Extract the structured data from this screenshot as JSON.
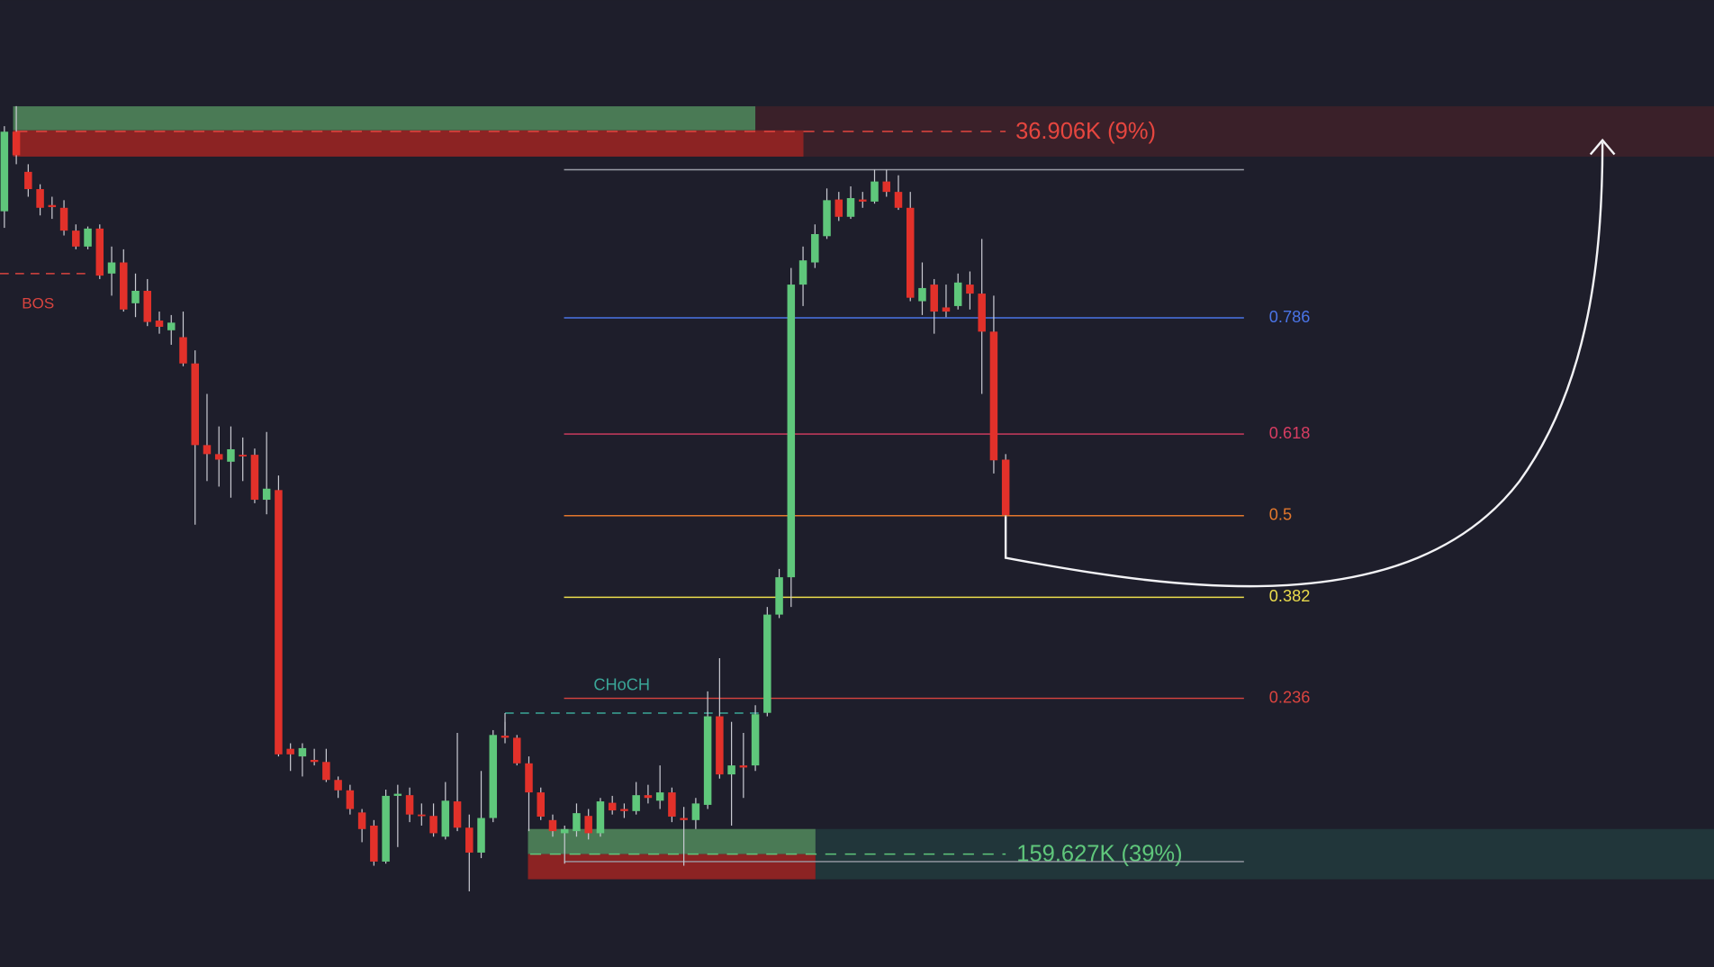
{
  "chart_data": {
    "type": "candlestick",
    "ylim": [
      -0.152,
      1.245
    ],
    "up_color": "#5fc77b",
    "down_color": "#e2312a",
    "wick_color": "#c9cad2",
    "open": [
      0.94,
      1.055,
      0.997,
      0.972,
      0.949,
      0.945,
      0.912,
      0.889,
      0.915,
      0.85,
      0.866,
      0.807,
      0.825,
      0.782,
      0.768,
      0.758,
      0.72,
      0.602,
      0.589,
      0.578,
      0.588,
      0.588,
      0.523,
      0.537,
      0.163,
      0.152,
      0.147,
      0.144,
      0.118,
      0.103,
      0.071,
      0.052,
      0,
      0.095,
      0.096,
      0.068,
      0.066,
      0.036,
      0.087,
      0.049,
      0.013,
      0.063,
      0.182,
      0.179,
      0.142,
      0.1,
      0.06,
      0.041,
      0.044,
      0.066,
      0.041,
      0.085,
      0.076,
      0.073,
      0.096,
      0.088,
      0.1,
      0.063,
      0.06,
      0.082,
      0.21,
      0.126,
      0.139,
      0.139,
      0.215,
      0.357,
      0.411,
      0.834,
      0.866,
      0.904,
      0.957,
      0.932,
      0.957,
      0.954,
      0.983,
      0.968,
      0.945,
      0.81,
      0.834,
      0.801,
      0.803,
      0.834,
      0.821,
      0.766,
      0.581
    ],
    "high": [
      1.063,
      1.092,
      1.008,
      0.979,
      0.961,
      0.956,
      0.921,
      0.918,
      0.921,
      0.889,
      0.885,
      0.85,
      0.842,
      0.795,
      0.79,
      0.795,
      0.739,
      0.676,
      0.629,
      0.629,
      0.613,
      0.597,
      0.621,
      0.558,
      0.171,
      0.171,
      0.163,
      0.163,
      0.123,
      0.111,
      0.076,
      0.06,
      0.104,
      0.111,
      0.107,
      0.084,
      0.084,
      0.115,
      0.186,
      0.068,
      0.131,
      0.19,
      0.202,
      0.183,
      0.152,
      0.107,
      0.068,
      0.052,
      0.084,
      0.076,
      0.092,
      0.095,
      0.084,
      0.115,
      0.111,
      0.139,
      0.107,
      0.079,
      0.092,
      0.246,
      0.294,
      0.202,
      0.186,
      0.226,
      0.368,
      0.423,
      0.858,
      0.889,
      0.921,
      0.973,
      0.968,
      0.976,
      0.968,
      1.0,
      1.0,
      0.992,
      0.968,
      0.866,
      0.842,
      0.834,
      0.85,
      0.853,
      0.9,
      0.818,
      0.589
    ],
    "low": [
      0.916,
      1.008,
      0.961,
      0.934,
      0.929,
      0.905,
      0.885,
      0.885,
      0.842,
      0.818,
      0.795,
      0.787,
      0.774,
      0.763,
      0.747,
      0.716,
      0.487,
      0.55,
      0.542,
      0.526,
      0.55,
      0.518,
      0.502,
      0.152,
      0.131,
      0.123,
      0.139,
      0.115,
      0.092,
      0.068,
      0.028,
      -0.006,
      -0.003,
      0.021,
      0.057,
      0.052,
      0.036,
      0.032,
      0.044,
      -0.043,
      0.005,
      0.057,
      0.171,
      0.139,
      0.044,
      0.06,
      0.036,
      -0.003,
      0.036,
      0.032,
      0.036,
      0.068,
      0.063,
      0.068,
      0.084,
      0.076,
      0.057,
      -0.006,
      0.047,
      0.076,
      0.12,
      0.052,
      0.092,
      0.131,
      0.21,
      0.352,
      0.368,
      0.803,
      0.858,
      0.9,
      0.926,
      0.929,
      0.945,
      0.951,
      0.961,
      0.942,
      0.81,
      0.79,
      0.763,
      0.787,
      0.798,
      0.798,
      0.676,
      0.561,
      0.499
    ],
    "close": [
      1.055,
      1.021,
      0.972,
      0.945,
      0.946,
      0.912,
      0.889,
      0.915,
      0.847,
      0.866,
      0.798,
      0.825,
      0.78,
      0.773,
      0.779,
      0.72,
      0.602,
      0.589,
      0.581,
      0.596,
      0.586,
      0.523,
      0.539,
      0.155,
      0.155,
      0.164,
      0.144,
      0.118,
      0.103,
      0.076,
      0.047,
      0,
      0.095,
      0.098,
      0.068,
      0.066,
      0.041,
      0.088,
      0.049,
      0.013,
      0.063,
      0.183,
      0.179,
      0.142,
      0.1,
      0.065,
      0.044,
      0.047,
      0.07,
      0.041,
      0.087,
      0.074,
      0.073,
      0.096,
      0.092,
      0.1,
      0.065,
      0.06,
      0.084,
      0.21,
      0.126,
      0.139,
      0.136,
      0.213,
      0.357,
      0.411,
      0.834,
      0.869,
      0.907,
      0.956,
      0.932,
      0.959,
      0.954,
      0.983,
      0.968,
      0.945,
      0.815,
      0.829,
      0.795,
      0.795,
      0.837,
      0.821,
      0.766,
      0.58,
      0.501
    ],
    "fib_range": [
      0,
      1
    ],
    "fib_range_color": "#9a9ca6",
    "fib_levels": [
      0.786,
      0.618,
      0.5,
      0.382,
      0.236
    ],
    "fib_colors": [
      "#4a74e6",
      "#d83d62",
      "#e2772c",
      "#ebdc4c",
      "#d9443f"
    ]
  },
  "annotations": {
    "premium_zone": "36.906K (9%)",
    "discount_zone": "159.627K (39%)",
    "bos": "BOS",
    "choch": "CHoCH"
  }
}
